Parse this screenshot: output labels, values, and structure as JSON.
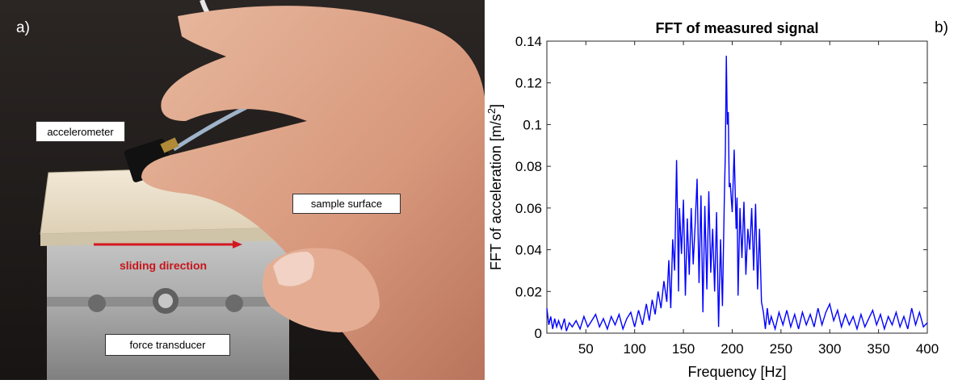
{
  "panel_a": {
    "letter": "a)",
    "labels": {
      "accelerometer": "accelerometer",
      "sample_surface": "sample surface",
      "sliding_direction": "sliding direction",
      "force_transducer": "force transducer"
    },
    "colors": {
      "arrow": "#d3181f",
      "sliding_text": "#c8141c"
    }
  },
  "panel_b": {
    "letter": "b)"
  },
  "chart_data": {
    "type": "line",
    "title": "FFT of measured signal",
    "xlabel": "Frequency [Hz]",
    "ylabel": "FFT of acceleration [m/s²]",
    "xlim": [
      10,
      400
    ],
    "ylim": [
      0,
      0.14
    ],
    "xticks": [
      50,
      100,
      150,
      200,
      250,
      300,
      350,
      400
    ],
    "yticks": [
      0,
      0.02,
      0.04,
      0.06,
      0.08,
      0.1,
      0.12,
      0.14
    ],
    "ytick_labels": [
      "0",
      "0.02",
      "0.04",
      "0.06",
      "0.08",
      "0.1",
      "0.12",
      "0.14"
    ],
    "grid": false,
    "series": [
      {
        "color": "#0000ff",
        "x": [
          10,
          12,
          14,
          16,
          18,
          20,
          22,
          25,
          28,
          30,
          33,
          36,
          40,
          44,
          48,
          52,
          56,
          60,
          64,
          68,
          72,
          76,
          80,
          84,
          88,
          92,
          96,
          100,
          104,
          108,
          112,
          115,
          118,
          121,
          124,
          127,
          130,
          133,
          135,
          137,
          139,
          141,
          143,
          144,
          145,
          146,
          148,
          150,
          152,
          154,
          156,
          158,
          160,
          162,
          164,
          166,
          168,
          170,
          172,
          174,
          176,
          178,
          180,
          182,
          184,
          186,
          188,
          190,
          192,
          193,
          194,
          195,
          196,
          197,
          198,
          200,
          202,
          204,
          205,
          206,
          208,
          210,
          212,
          214,
          216,
          218,
          220,
          222,
          224,
          226,
          228,
          230,
          232,
          234,
          236,
          238,
          240,
          244,
          248,
          252,
          256,
          260,
          264,
          268,
          272,
          276,
          280,
          284,
          288,
          292,
          296,
          300,
          304,
          308,
          312,
          316,
          320,
          324,
          328,
          332,
          336,
          340,
          344,
          348,
          352,
          356,
          360,
          364,
          368,
          372,
          376,
          380,
          384,
          388,
          392,
          396,
          400
        ],
        "y": [
          0.012,
          0.004,
          0.008,
          0.002,
          0.007,
          0.003,
          0.006,
          0.002,
          0.007,
          0.001,
          0.005,
          0.003,
          0.006,
          0.002,
          0.008,
          0.003,
          0.006,
          0.009,
          0.003,
          0.007,
          0.002,
          0.008,
          0.004,
          0.009,
          0.002,
          0.007,
          0.01,
          0.003,
          0.011,
          0.004,
          0.014,
          0.006,
          0.016,
          0.009,
          0.02,
          0.012,
          0.025,
          0.015,
          0.035,
          0.012,
          0.045,
          0.03,
          0.083,
          0.055,
          0.02,
          0.06,
          0.038,
          0.064,
          0.018,
          0.055,
          0.028,
          0.06,
          0.033,
          0.052,
          0.074,
          0.024,
          0.066,
          0.01,
          0.061,
          0.021,
          0.068,
          0.029,
          0.05,
          0.02,
          0.058,
          0.003,
          0.045,
          0.013,
          0.066,
          0.087,
          0.133,
          0.1,
          0.106,
          0.07,
          0.072,
          0.058,
          0.088,
          0.05,
          0.065,
          0.018,
          0.06,
          0.036,
          0.063,
          0.028,
          0.05,
          0.04,
          0.06,
          0.03,
          0.062,
          0.021,
          0.05,
          0.015,
          0.01,
          0.002,
          0.012,
          0.004,
          0.008,
          0.002,
          0.01,
          0.004,
          0.011,
          0.003,
          0.009,
          0.002,
          0.01,
          0.004,
          0.009,
          0.003,
          0.012,
          0.004,
          0.01,
          0.014,
          0.006,
          0.011,
          0.003,
          0.009,
          0.004,
          0.008,
          0.002,
          0.009,
          0.003,
          0.007,
          0.011,
          0.004,
          0.009,
          0.002,
          0.008,
          0.004,
          0.01,
          0.003,
          0.008,
          0.002,
          0.012,
          0.004,
          0.01,
          0.003,
          0.005
        ]
      }
    ]
  }
}
